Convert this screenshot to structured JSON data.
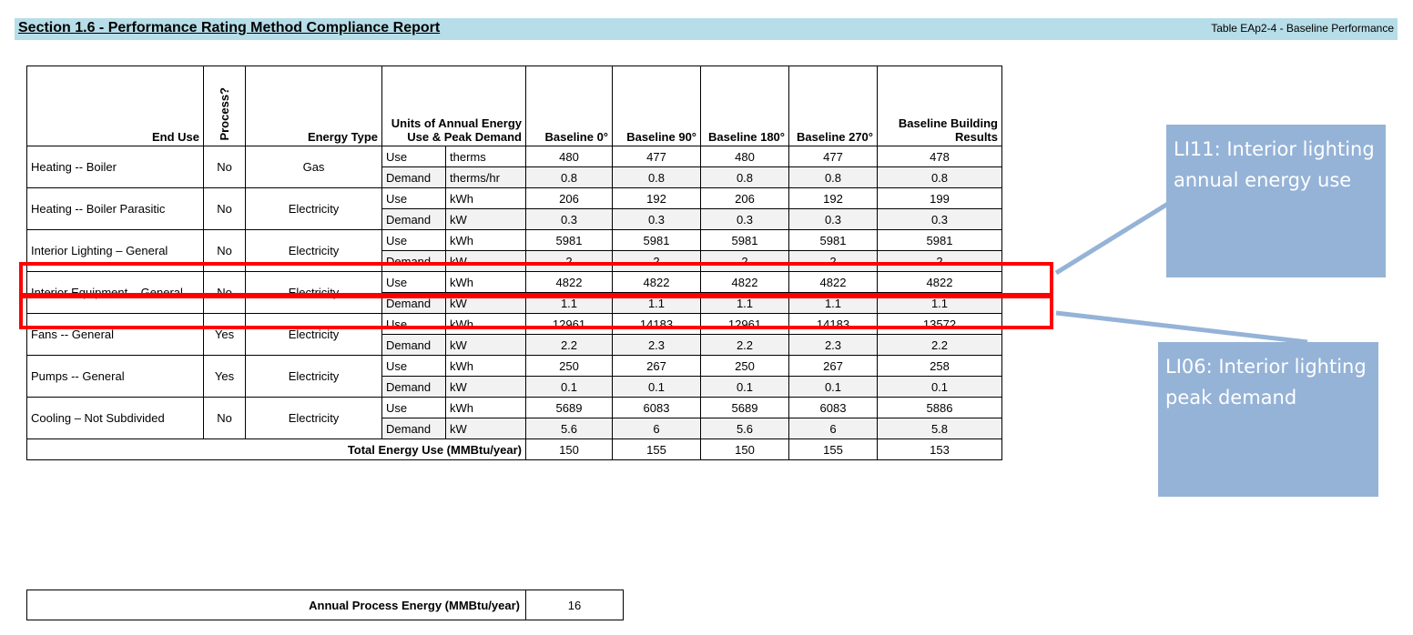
{
  "header": {
    "section_title": "Section 1.6 - Performance Rating Method Compliance Report",
    "table_ref": "Table EAp2-4 - Baseline Performance"
  },
  "table": {
    "columns": {
      "end_use": "End Use",
      "process": "Process?",
      "energy_type": "Energy Type",
      "units": "Units of Annual Energy Use & Peak Demand",
      "baseline_0": "Baseline 0°",
      "baseline_90": "Baseline 90°",
      "baseline_180": "Baseline 180°",
      "baseline_270": "Baseline 270°",
      "building_results": "Baseline Building Results"
    },
    "rows": [
      {
        "end_use": "Heating -- Boiler",
        "process": "No",
        "energy_type": "Gas",
        "use": {
          "label": "Use",
          "unit": "therms",
          "v0": "480",
          "v90": "477",
          "v180": "480",
          "v270": "477",
          "result": "478"
        },
        "demand": {
          "label": "Demand",
          "unit": "therms/hr",
          "v0": "0.8",
          "v90": "0.8",
          "v180": "0.8",
          "v270": "0.8",
          "result": "0.8"
        }
      },
      {
        "end_use": "Heating -- Boiler Parasitic",
        "process": "No",
        "energy_type": "Electricity",
        "use": {
          "label": "Use",
          "unit": "kWh",
          "v0": "206",
          "v90": "192",
          "v180": "206",
          "v270": "192",
          "result": "199"
        },
        "demand": {
          "label": "Demand",
          "unit": "kW",
          "v0": "0.3",
          "v90": "0.3",
          "v180": "0.3",
          "v270": "0.3",
          "result": "0.3"
        }
      },
      {
        "end_use": "Interior Lighting – General",
        "process": "No",
        "energy_type": "Electricity",
        "use": {
          "label": "Use",
          "unit": "kWh",
          "v0": "5981",
          "v90": "5981",
          "v180": "5981",
          "v270": "5981",
          "result": "5981"
        },
        "demand": {
          "label": "Demand",
          "unit": "kW",
          "v0": "2",
          "v90": "2",
          "v180": "2",
          "v270": "2",
          "result": "2"
        }
      },
      {
        "end_use": "Interior Equipment – General",
        "process": "No",
        "energy_type": "Electricity",
        "use": {
          "label": "Use",
          "unit": "kWh",
          "v0": "4822",
          "v90": "4822",
          "v180": "4822",
          "v270": "4822",
          "result": "4822"
        },
        "demand": {
          "label": "Demand",
          "unit": "kW",
          "v0": "1.1",
          "v90": "1.1",
          "v180": "1.1",
          "v270": "1.1",
          "result": "1.1"
        }
      },
      {
        "end_use": "Fans -- General",
        "process": "Yes",
        "energy_type": "Electricity",
        "use": {
          "label": "Use",
          "unit": "kWh",
          "v0": "12961",
          "v90": "14183",
          "v180": "12961",
          "v270": "14183",
          "result": "13572"
        },
        "demand": {
          "label": "Demand",
          "unit": "kW",
          "v0": "2.2",
          "v90": "2.3",
          "v180": "2.2",
          "v270": "2.3",
          "result": "2.2"
        }
      },
      {
        "end_use": "Pumps -- General",
        "process": "Yes",
        "energy_type": "Electricity",
        "use": {
          "label": "Use",
          "unit": "kWh",
          "v0": "250",
          "v90": "267",
          "v180": "250",
          "v270": "267",
          "result": "258"
        },
        "demand": {
          "label": "Demand",
          "unit": "kW",
          "v0": "0.1",
          "v90": "0.1",
          "v180": "0.1",
          "v270": "0.1",
          "result": "0.1"
        }
      },
      {
        "end_use": "Cooling – Not Subdivided",
        "process": "No",
        "energy_type": "Electricity",
        "use": {
          "label": "Use",
          "unit": "kWh",
          "v0": "5689",
          "v90": "6083",
          "v180": "5689",
          "v270": "6083",
          "result": "5886"
        },
        "demand": {
          "label": "Demand",
          "unit": "kW",
          "v0": "5.6",
          "v90": "6",
          "v180": "5.6",
          "v270": "6",
          "result": "5.8"
        }
      }
    ],
    "total": {
      "label": "Total Energy Use (MMBtu/year)",
      "v0": "150",
      "v90": "155",
      "v180": "150",
      "v270": "155",
      "result": "153"
    },
    "process_energy": {
      "label": "Annual Process Energy (MMBtu/year)",
      "value": "16"
    }
  },
  "callouts": {
    "annual_energy": "LI11: Interior lighting annual energy use",
    "peak_demand": "LI06: Interior lighting peak demand"
  },
  "colors": {
    "header_bg": "#b6dde8",
    "highlight": "#ff0000",
    "callout_bg": "#95b3d7",
    "callout_text": "#ffffff",
    "alt_row_bg": "#f2f2f2"
  }
}
